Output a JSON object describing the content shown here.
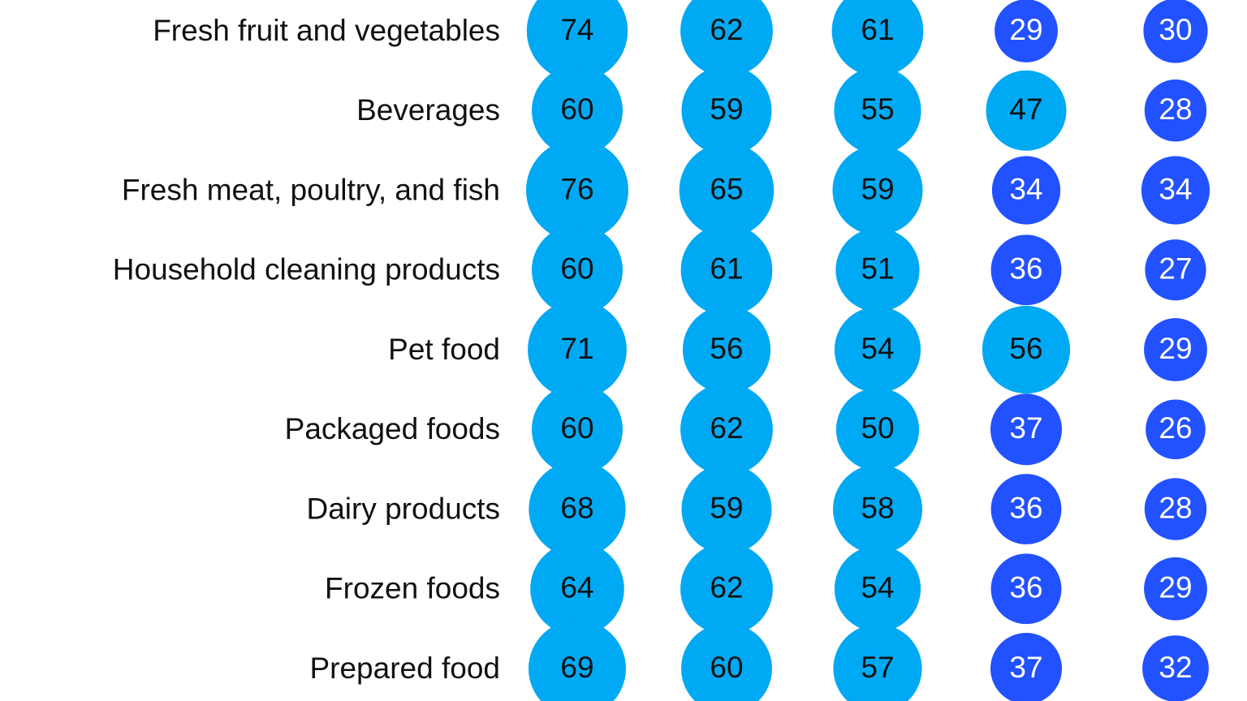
{
  "chart_data": {
    "type": "bubble-grid",
    "title": "",
    "max_value": 76,
    "highlight_threshold": 40,
    "colors": {
      "high": "#00a9f4",
      "low": "#2251ff",
      "label_text": "#111111",
      "value_text_high": "#111111",
      "value_text_low": "#ffffff"
    },
    "rows": [
      {
        "category": "Fresh fruit and vegetables",
        "values": [
          74,
          62,
          61,
          29,
          30
        ]
      },
      {
        "category": "Beverages",
        "values": [
          60,
          59,
          55,
          47,
          28
        ]
      },
      {
        "category": "Fresh meat, poultry, and fish",
        "values": [
          76,
          65,
          59,
          34,
          34
        ]
      },
      {
        "category": "Household cleaning products",
        "values": [
          60,
          61,
          51,
          36,
          27
        ]
      },
      {
        "category": "Pet food",
        "values": [
          71,
          56,
          54,
          56,
          29
        ]
      },
      {
        "category": "Packaged foods",
        "values": [
          60,
          62,
          50,
          37,
          26
        ]
      },
      {
        "category": "Dairy products",
        "values": [
          68,
          59,
          58,
          36,
          28
        ]
      },
      {
        "category": "Frozen foods",
        "values": [
          64,
          62,
          54,
          36,
          29
        ]
      },
      {
        "category": "Prepared food",
        "values": [
          69,
          60,
          57,
          37,
          32
        ]
      }
    ]
  }
}
